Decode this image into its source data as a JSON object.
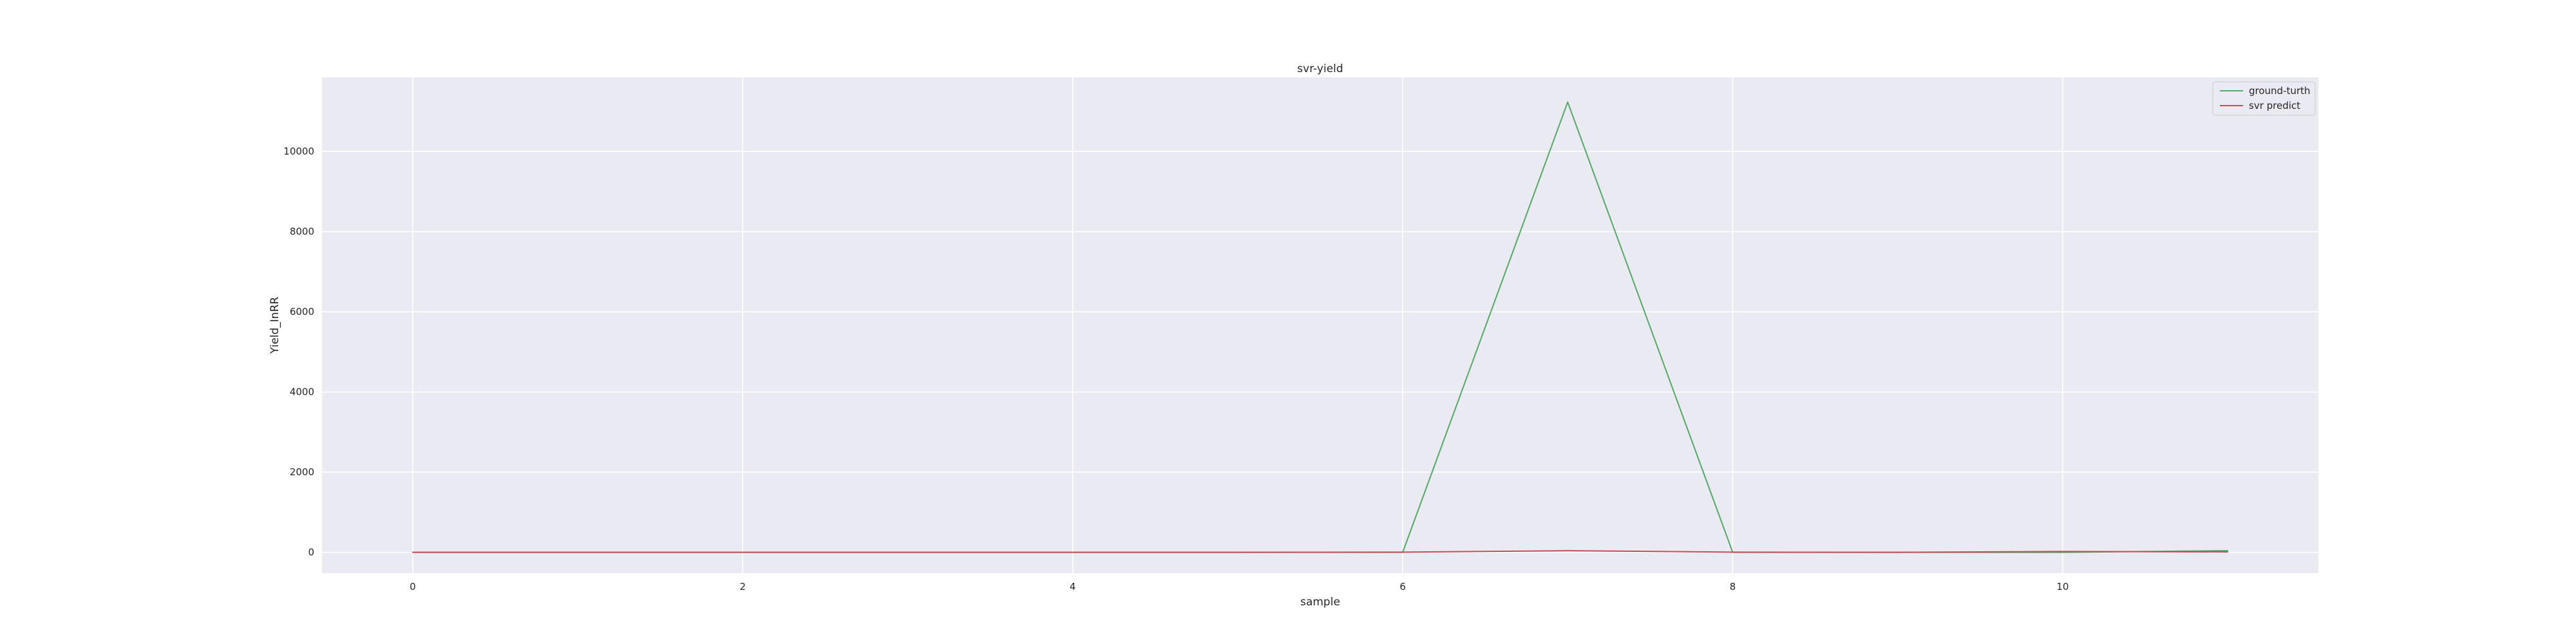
{
  "chart_data": {
    "type": "line",
    "title": "svr-yield",
    "xlabel": "sample",
    "ylabel": "Yield_InRR",
    "x": [
      0,
      1,
      2,
      3,
      4,
      5,
      6,
      7,
      8,
      9,
      10,
      11
    ],
    "xlim": [
      -0.55,
      11.55
    ],
    "ylim": [
      -520,
      11850
    ],
    "xticks": [
      0,
      2,
      4,
      6,
      8,
      10
    ],
    "yticks": [
      0,
      2000,
      4000,
      6000,
      8000,
      10000
    ],
    "grid": true,
    "legend_position": "upper-right",
    "series": [
      {
        "name": "ground-turth",
        "color": "#55a868",
        "values": [
          0,
          0,
          0,
          0,
          0,
          0,
          0,
          11230,
          0,
          0,
          0,
          40
        ]
      },
      {
        "name": "svr predict",
        "color": "#c44e52",
        "values": [
          0,
          0,
          0,
          0,
          0,
          0,
          5,
          40,
          5,
          0,
          20,
          10
        ]
      }
    ]
  },
  "colors": {
    "plot_background": "#eaeaf2",
    "grid": "#ffffff",
    "text": "#262626"
  }
}
